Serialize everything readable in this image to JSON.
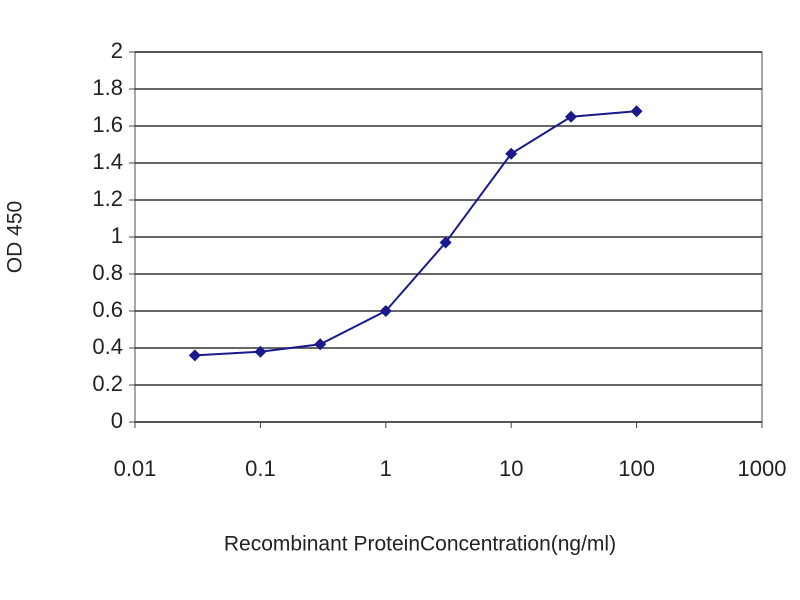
{
  "chart_data": {
    "type": "line",
    "x_label": "Recombinant ProteinConcentration(ng/ml)",
    "y_label": "OD 450",
    "x": [
      0.03,
      0.1,
      0.3,
      1,
      3,
      10,
      30,
      100
    ],
    "series": [
      {
        "name": "OD 450",
        "color": "#1a1a8c",
        "values": [
          0.36,
          0.38,
          0.42,
          0.6,
          0.97,
          1.45,
          1.65,
          1.68
        ]
      }
    ],
    "xlim": [
      0.01,
      1000
    ],
    "xticks": [
      0.01,
      0.1,
      1,
      10,
      100,
      1000
    ],
    "xscale": "log",
    "ylim": [
      0,
      2
    ],
    "yticks": [
      0,
      0.2,
      0.4,
      0.6,
      0.8,
      1,
      1.2,
      1.4,
      1.6,
      1.8,
      2
    ],
    "grid": true
  }
}
